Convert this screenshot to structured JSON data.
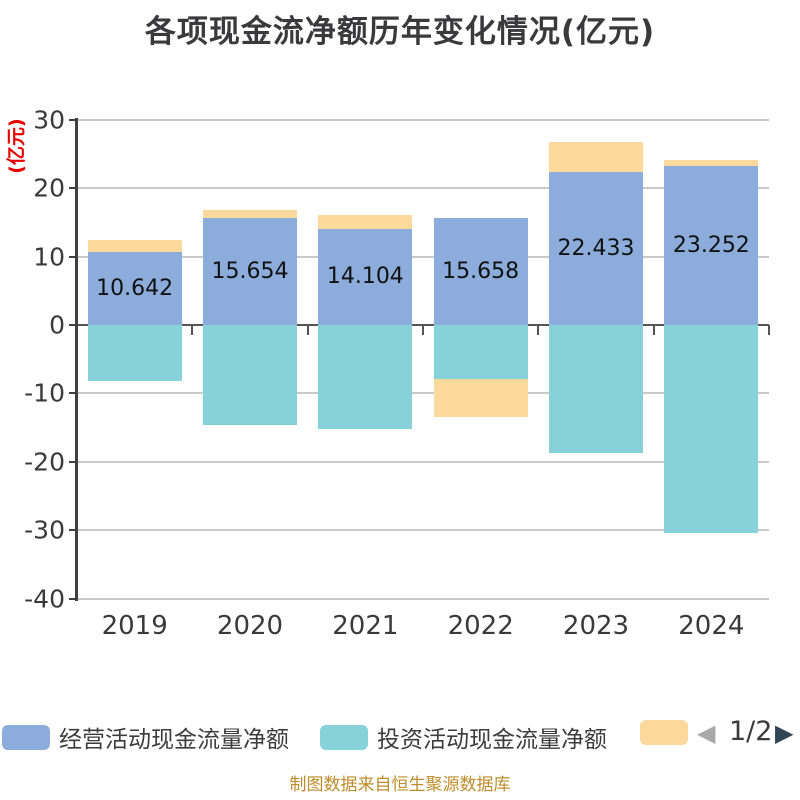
{
  "title": {
    "text": "各项现金流净额历年变化情况(亿元)"
  },
  "y_axis": {
    "name": "(亿元)",
    "name_color": "#e60000",
    "ticks": [
      30,
      20,
      10,
      0,
      -10,
      -20,
      -30,
      -40
    ],
    "min": -40,
    "max": 30
  },
  "x_axis": {
    "categories": [
      "2019",
      "2020",
      "2021",
      "2022",
      "2023",
      "2024"
    ]
  },
  "chart_data": {
    "type": "bar",
    "stacked": true,
    "title": "各项现金流净额历年变化情况(亿元)",
    "categories": [
      "2019",
      "2020",
      "2021",
      "2022",
      "2023",
      "2024"
    ],
    "series": [
      {
        "name": "经营活动现金流量净额",
        "color": "#8cacdb",
        "values": [
          10.642,
          15.654,
          14.104,
          15.658,
          22.433,
          23.252
        ],
        "data_labels": [
          "10.642",
          "15.654",
          "14.104",
          "15.658",
          "22.433",
          "23.252"
        ]
      },
      {
        "name": "投资活动现金流量净额",
        "color": "#87d2d8",
        "values": [
          -8.2,
          -14.6,
          -15.2,
          -7.9,
          -18.7,
          -30.4
        ],
        "values_estimated_from_pixels": true
      },
      {
        "name": "",
        "color": "#fbd89b",
        "values": [
          1.8,
          1.2,
          2.0,
          -5.6,
          4.3,
          0.8
        ],
        "values_estimated_from_pixels": true
      }
    ],
    "ylabel": "(亿元)",
    "ylim": [
      -40,
      30
    ],
    "grid": true,
    "gridline_color": "#c9c9c9",
    "legend_position": "bottom"
  },
  "legend": {
    "items": [
      {
        "label": "经营活动现金流量净额",
        "color": "#8cacdb"
      },
      {
        "label": "投资活动现金流量净额",
        "color": "#87d2d8"
      },
      {
        "label": "",
        "color": "#fbd89b"
      }
    ],
    "pager": {
      "current": "1/2",
      "prev_icon": "left-triangle",
      "next_icon": "right-triangle",
      "prev_color": "#a9a9a9",
      "next_color": "#2f4554",
      "prev_glyph": "◀",
      "next_glyph": "▶"
    }
  },
  "footer": {
    "text": "制图数据来自恒生聚源数据库",
    "color": "#be8c2b"
  }
}
